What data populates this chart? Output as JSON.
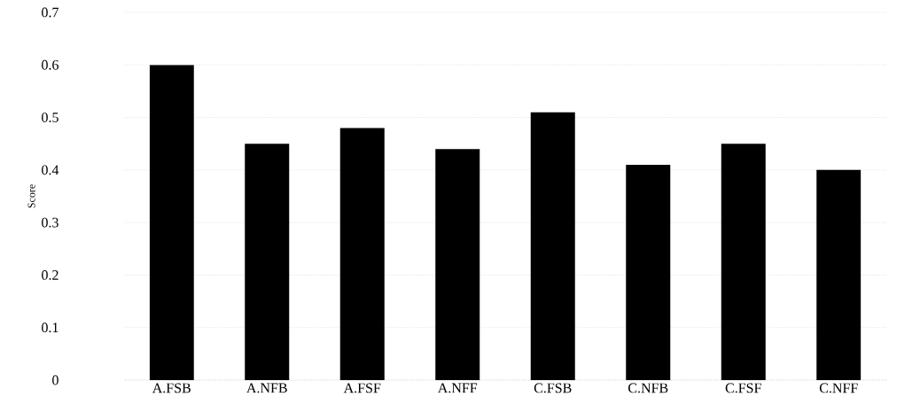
{
  "chart_data": {
    "type": "bar",
    "ylabel": "Score",
    "categories": [
      "A.FSB",
      "A.NFB",
      "A.FSF",
      "A.NFF",
      "C.FSB",
      "C.NFB",
      "C.FSF",
      "C.NFF"
    ],
    "values": [
      0.6,
      0.45,
      0.48,
      0.44,
      0.51,
      0.41,
      0.45,
      0.4
    ],
    "color": "#000000",
    "ylim": [
      0,
      0.7
    ],
    "yticks": [
      0,
      0.1,
      0.2,
      0.3,
      0.4,
      0.5,
      0.6,
      0.7
    ],
    "grid": "y"
  }
}
